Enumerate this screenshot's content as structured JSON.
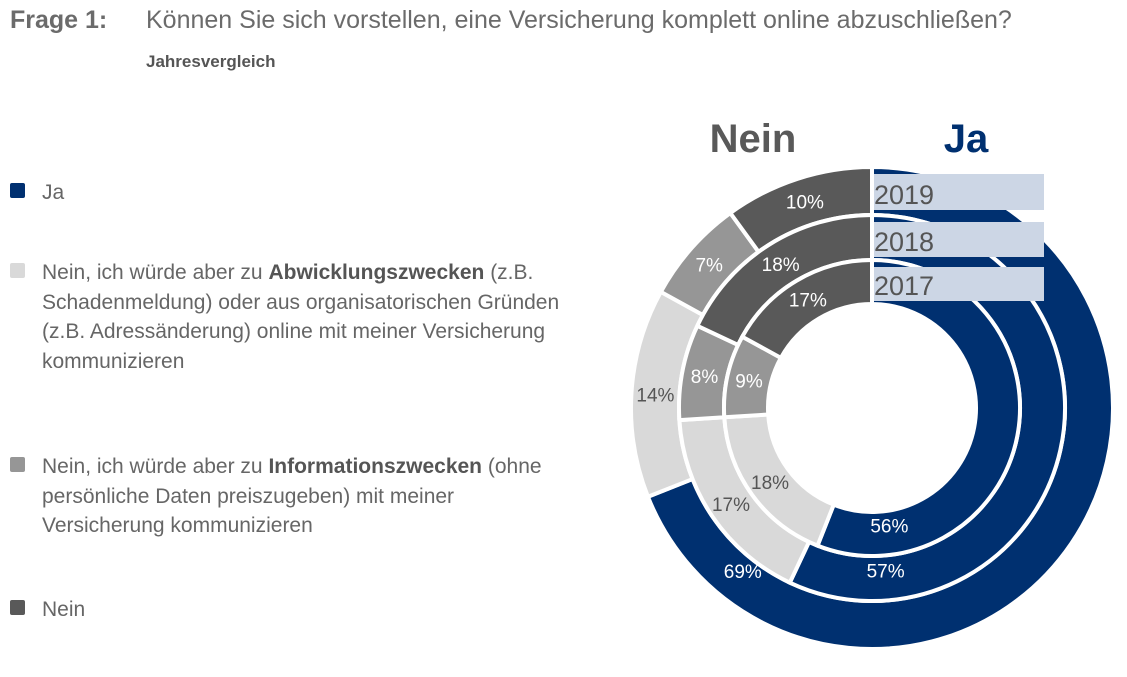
{
  "header": {
    "question_label": "Frage 1:",
    "question_text": "Können Sie sich vorstellen, eine Versicherung komplett online abzuschließen?",
    "subtitle": "Jahresvergleich"
  },
  "legend": {
    "items": [
      {
        "key": "ja",
        "color": "#003070",
        "parts": [
          "Ja"
        ]
      },
      {
        "key": "abwicklung",
        "color": "#d9d9d9",
        "parts": [
          "Nein, ich würde aber zu ",
          "Abwicklungszwecken",
          " (z.B. Schadenmeldung) oder aus organisatorischen Gründen (z.B. Adressänderung) online mit meiner Versicherung kommunizieren"
        ]
      },
      {
        "key": "information",
        "color": "#969696",
        "parts": [
          "Nein, ich würde aber zu ",
          "Informationszwecken",
          " (ohne persönliche Daten preiszugeben) mit meiner Versicherung kommunizieren"
        ]
      },
      {
        "key": "nein",
        "color": "#595959",
        "parts": [
          "Nein"
        ]
      }
    ]
  },
  "chart_data": {
    "type": "pie",
    "variant": "nested-donut",
    "header_left": "Nein",
    "header_right": "Ja",
    "categories": [
      "Ja",
      "Nein, ich würde aber zu Abwicklungszwecken",
      "Nein, ich würde aber zu Informationszwecken",
      "Nein"
    ],
    "colors": [
      "#003070",
      "#d9d9d9",
      "#969696",
      "#595959"
    ],
    "series": [
      {
        "name": "2019",
        "values": [
          69,
          14,
          7,
          10
        ],
        "labels": [
          "69%",
          "14%",
          "7%",
          "10%"
        ]
      },
      {
        "name": "2018",
        "values": [
          57,
          17,
          8,
          18
        ],
        "labels": [
          "57%",
          "17%",
          "8%",
          "18%"
        ]
      },
      {
        "name": "2017",
        "values": [
          56,
          18,
          9,
          17
        ],
        "labels": [
          "56%",
          "18%",
          "9%",
          "17%"
        ]
      }
    ]
  }
}
